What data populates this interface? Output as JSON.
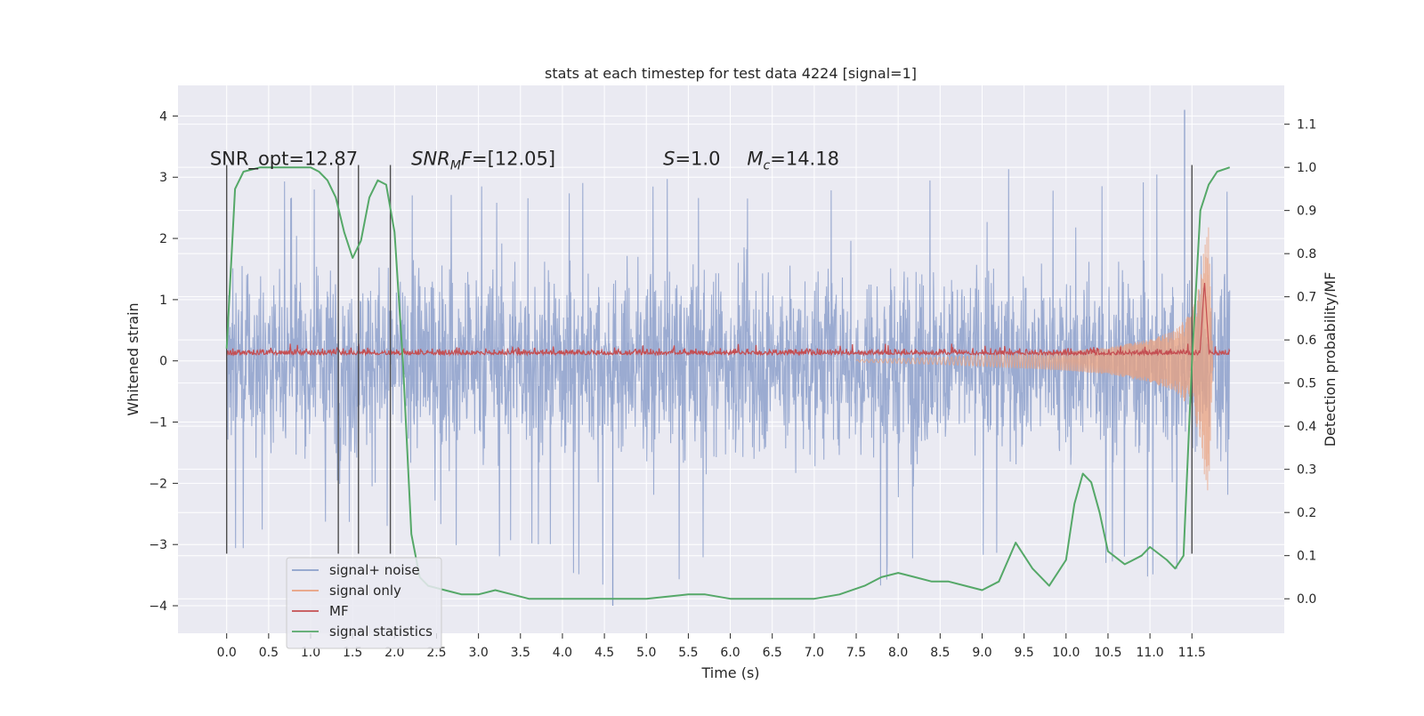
{
  "chart_data": {
    "type": "line",
    "title": "stats at each timestep for test data 4224 [signal=1]",
    "xlabel": "Time (s)",
    "ylabel": "Whitened strain",
    "y2label": "Detection probability/MF",
    "xlim": [
      -0.58,
      12.6
    ],
    "ylim": [
      -4.45,
      4.5
    ],
    "y2lim": [
      -0.08,
      1.19
    ],
    "xticks": [
      0.0,
      0.5,
      1.0,
      1.5,
      2.0,
      2.5,
      3.0,
      3.5,
      4.0,
      4.5,
      5.0,
      5.5,
      6.0,
      6.5,
      7.0,
      7.5,
      8.0,
      8.5,
      9.0,
      9.5,
      10.0,
      10.5,
      11.0,
      11.5
    ],
    "xtick_labels": [
      "0.0",
      "0.5",
      "1.0",
      "1.5",
      "2.0",
      "2.5",
      "3.0",
      "3.5",
      "4.0",
      "4.5",
      "5.0",
      "5.5",
      "6.0",
      "6.5",
      "7.0",
      "7.5",
      "8.0",
      "8.5",
      "9.0",
      "9.5",
      "10.0",
      "10.5",
      "11.0",
      "11.5"
    ],
    "yticks": [
      -4,
      -3,
      -2,
      -1,
      0,
      1,
      2,
      3,
      4
    ],
    "ytick_labels": [
      "−4",
      "−3",
      "−2",
      "−1",
      "0",
      "1",
      "2",
      "3",
      "4"
    ],
    "y2ticks": [
      0.0,
      0.1,
      0.2,
      0.3,
      0.4,
      0.5,
      0.6,
      0.7,
      0.8,
      0.9,
      1.0,
      1.1
    ],
    "y2tick_labels": [
      "0.0",
      "0.1",
      "0.2",
      "0.3",
      "0.4",
      "0.5",
      "0.6",
      "0.7",
      "0.8",
      "0.9",
      "1.0",
      "1.1"
    ],
    "grid": true,
    "legend_position": "lower-left",
    "annotations": [
      {
        "text": "SNR_opt=12.87",
        "x": -0.2,
        "y": 3.2
      },
      {
        "text": "SNR_MF=[12.05]",
        "x": 2.2,
        "y": 3.2
      },
      {
        "text": "S=1.0",
        "x": 5.2,
        "y": 3.2
      },
      {
        "text": "M_c=14.18",
        "x": 6.2,
        "y": 3.2
      }
    ],
    "vertical_markers": [
      0.0,
      1.33,
      1.57,
      1.95,
      11.5
    ],
    "noise_envelope": {
      "t": [
        0.0,
        1.0,
        2.0,
        3.0,
        4.0,
        5.0,
        6.0,
        7.0,
        8.0,
        9.0,
        10.0,
        11.0,
        11.95
      ],
      "upper": [
        2.8,
        3.0,
        2.7,
        3.0,
        2.9,
        3.1,
        3.0,
        3.1,
        3.2,
        3.3,
        3.2,
        3.1,
        3.0
      ],
      "lower": [
        -3.1,
        -3.0,
        -2.8,
        -3.2,
        -3.5,
        -3.9,
        -3.3,
        -3.4,
        -3.8,
        -3.3,
        -3.9,
        -3.6,
        -3.1
      ]
    },
    "series": [
      {
        "name": "signal+ noise",
        "color": "#8da0cb",
        "axis": "left",
        "t": [
          0.0,
          11.95
        ],
        "typical_abs_amplitude": 1.3,
        "max": 4.1,
        "min": -4.0
      },
      {
        "name": "signal only",
        "color": "#e9a17f",
        "axis": "left",
        "t": [
          7.5,
          8.0,
          8.5,
          9.0,
          9.5,
          10.0,
          10.5,
          11.0,
          11.3,
          11.5,
          11.6,
          11.65,
          11.7,
          11.75
        ],
        "amplitude": [
          0.02,
          0.04,
          0.06,
          0.09,
          0.12,
          0.16,
          0.22,
          0.35,
          0.5,
          0.8,
          1.3,
          1.9,
          2.2,
          0.0
        ]
      },
      {
        "name": "MF",
        "color": "#c44e52",
        "axis": "left",
        "t": [
          0.0,
          11.95
        ],
        "baseline": 0.1,
        "typical_peak": 0.28,
        "peak_t": 11.65,
        "peak_value": 1.3
      },
      {
        "name": "signal statistics",
        "color": "#55a868",
        "axis": "right",
        "t": [
          0.0,
          0.1,
          0.2,
          0.4,
          0.6,
          0.8,
          1.0,
          1.1,
          1.2,
          1.3,
          1.4,
          1.5,
          1.6,
          1.7,
          1.8,
          1.9,
          2.0,
          2.1,
          2.2,
          2.3,
          2.4,
          2.6,
          2.8,
          3.0,
          3.2,
          3.4,
          3.6,
          4.0,
          4.5,
          5.0,
          5.5,
          5.7,
          6.0,
          6.2,
          6.5,
          7.0,
          7.3,
          7.6,
          7.8,
          8.0,
          8.2,
          8.4,
          8.6,
          8.8,
          9.0,
          9.2,
          9.4,
          9.6,
          9.8,
          10.0,
          10.1,
          10.2,
          10.3,
          10.4,
          10.5,
          10.7,
          10.9,
          11.0,
          11.2,
          11.3,
          11.4,
          11.5,
          11.6,
          11.7,
          11.8,
          11.95
        ],
        "values": [
          0.58,
          0.95,
          0.99,
          1.0,
          1.0,
          1.0,
          1.0,
          0.99,
          0.97,
          0.93,
          0.85,
          0.79,
          0.83,
          0.93,
          0.97,
          0.96,
          0.85,
          0.55,
          0.15,
          0.05,
          0.03,
          0.02,
          0.01,
          0.01,
          0.02,
          0.01,
          0.0,
          0.0,
          0.0,
          0.0,
          0.01,
          0.01,
          0.0,
          0.0,
          0.0,
          0.0,
          0.01,
          0.03,
          0.05,
          0.06,
          0.05,
          0.04,
          0.04,
          0.03,
          0.02,
          0.04,
          0.13,
          0.07,
          0.03,
          0.09,
          0.22,
          0.29,
          0.27,
          0.2,
          0.11,
          0.08,
          0.1,
          0.12,
          0.09,
          0.07,
          0.1,
          0.55,
          0.9,
          0.96,
          0.99,
          1.0
        ]
      }
    ]
  }
}
